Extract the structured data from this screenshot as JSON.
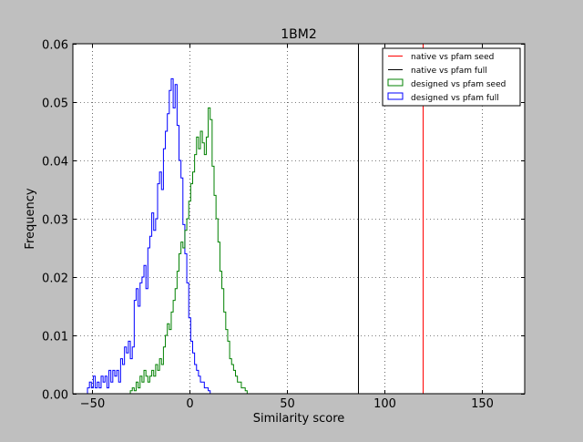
{
  "chart_data": {
    "type": "histogram",
    "title": "1BM2",
    "xlabel": "Similarity score",
    "ylabel": "Frequency",
    "xlim": [
      -60,
      172
    ],
    "ylim": [
      0,
      0.06
    ],
    "grid": true,
    "grid_style": "dotted",
    "x_ticks": [
      -50,
      0,
      50,
      100,
      150
    ],
    "x_tick_labels": [
      "−50",
      "0",
      "50",
      "100",
      "150"
    ],
    "y_ticks": [
      0,
      0.01,
      0.02,
      0.03,
      0.04,
      0.05,
      0.06
    ],
    "y_tick_labels": [
      "0.00",
      "0.01",
      "0.02",
      "0.03",
      "0.04",
      "0.05",
      "0.06"
    ],
    "legend_placement": "top-right",
    "legend": [
      {
        "label": "native vs pfam seed",
        "color": "#ff0000",
        "kind": "line"
      },
      {
        "label": "native vs pfam full",
        "color": "#000000",
        "kind": "line"
      },
      {
        "label": "designed vs pfam seed",
        "color": "#008000",
        "kind": "patch"
      },
      {
        "label": "designed vs pfam full",
        "color": "#0000ff",
        "kind": "patch"
      }
    ],
    "vlines": [
      {
        "name": "native vs pfam seed",
        "x": 119.5,
        "color": "#ff0000"
      },
      {
        "name": "native vs pfam full",
        "x": 86.5,
        "color": "#000000"
      }
    ],
    "series": [
      {
        "name": "designed vs pfam full",
        "color": "#0000ff",
        "points": [
          [
            -52,
            0.001
          ],
          [
            -51,
            0.002
          ],
          [
            -50,
            0.001
          ],
          [
            -49,
            0.003
          ],
          [
            -48,
            0.001
          ],
          [
            -47,
            0.002
          ],
          [
            -46,
            0.001
          ],
          [
            -45,
            0.003
          ],
          [
            -44,
            0.002
          ],
          [
            -43,
            0.003
          ],
          [
            -42,
            0.001
          ],
          [
            -41,
            0.004
          ],
          [
            -40,
            0.002
          ],
          [
            -39,
            0.004
          ],
          [
            -38,
            0.003
          ],
          [
            -37,
            0.004
          ],
          [
            -36,
            0.002
          ],
          [
            -35,
            0.006
          ],
          [
            -34,
            0.005
          ],
          [
            -33,
            0.008
          ],
          [
            -32,
            0.007
          ],
          [
            -31,
            0.009
          ],
          [
            -30,
            0.006
          ],
          [
            -29,
            0.008
          ],
          [
            -28,
            0.016
          ],
          [
            -27,
            0.018
          ],
          [
            -26,
            0.015
          ],
          [
            -25,
            0.019
          ],
          [
            -24,
            0.02
          ],
          [
            -23,
            0.022
          ],
          [
            -22,
            0.018
          ],
          [
            -21,
            0.025
          ],
          [
            -20,
            0.027
          ],
          [
            -19,
            0.031
          ],
          [
            -18,
            0.028
          ],
          [
            -17,
            0.03
          ],
          [
            -16,
            0.036
          ],
          [
            -15,
            0.038
          ],
          [
            -14,
            0.035
          ],
          [
            -13,
            0.042
          ],
          [
            -12,
            0.045
          ],
          [
            -11,
            0.048
          ],
          [
            -10,
            0.052
          ],
          [
            -9,
            0.054
          ],
          [
            -8,
            0.049
          ],
          [
            -7,
            0.053
          ],
          [
            -6,
            0.046
          ],
          [
            -5,
            0.04
          ],
          [
            -4,
            0.037
          ],
          [
            -3,
            0.029
          ],
          [
            -2,
            0.024
          ],
          [
            -1,
            0.019
          ],
          [
            0,
            0.013
          ],
          [
            1,
            0.009
          ],
          [
            2,
            0.007
          ],
          [
            3,
            0.005
          ],
          [
            4,
            0.004
          ],
          [
            5,
            0.003
          ],
          [
            6,
            0.002
          ],
          [
            7,
            0.002
          ],
          [
            8,
            0.001
          ],
          [
            9,
            0.001
          ],
          [
            10,
            0.0005
          ]
        ]
      },
      {
        "name": "designed vs pfam seed",
        "color": "#008000",
        "points": [
          [
            -30,
            0.0005
          ],
          [
            -29,
            0.001
          ],
          [
            -28,
            0.0005
          ],
          [
            -27,
            0.002
          ],
          [
            -26,
            0.001
          ],
          [
            -25,
            0.003
          ],
          [
            -24,
            0.002
          ],
          [
            -23,
            0.004
          ],
          [
            -22,
            0.003
          ],
          [
            -21,
            0.002
          ],
          [
            -20,
            0.003
          ],
          [
            -19,
            0.004
          ],
          [
            -18,
            0.003
          ],
          [
            -17,
            0.005
          ],
          [
            -16,
            0.004
          ],
          [
            -15,
            0.006
          ],
          [
            -14,
            0.005
          ],
          [
            -13,
            0.008
          ],
          [
            -12,
            0.01
          ],
          [
            -11,
            0.012
          ],
          [
            -10,
            0.011
          ],
          [
            -9,
            0.014
          ],
          [
            -8,
            0.016
          ],
          [
            -7,
            0.018
          ],
          [
            -6,
            0.021
          ],
          [
            -5,
            0.024
          ],
          [
            -4,
            0.026
          ],
          [
            -3,
            0.025
          ],
          [
            -2,
            0.028
          ],
          [
            -1,
            0.03
          ],
          [
            0,
            0.033
          ],
          [
            1,
            0.036
          ],
          [
            2,
            0.038
          ],
          [
            3,
            0.041
          ],
          [
            4,
            0.044
          ],
          [
            5,
            0.042
          ],
          [
            6,
            0.045
          ],
          [
            7,
            0.043
          ],
          [
            8,
            0.041
          ],
          [
            9,
            0.044
          ],
          [
            10,
            0.049
          ],
          [
            11,
            0.047
          ],
          [
            12,
            0.039
          ],
          [
            13,
            0.034
          ],
          [
            14,
            0.03
          ],
          [
            15,
            0.026
          ],
          [
            16,
            0.021
          ],
          [
            17,
            0.018
          ],
          [
            18,
            0.014
          ],
          [
            19,
            0.011
          ],
          [
            20,
            0.009
          ],
          [
            21,
            0.006
          ],
          [
            22,
            0.005
          ],
          [
            23,
            0.004
          ],
          [
            24,
            0.003
          ],
          [
            25,
            0.002
          ],
          [
            26,
            0.002
          ],
          [
            27,
            0.001
          ],
          [
            28,
            0.001
          ],
          [
            29,
            0.0005
          ]
        ]
      }
    ]
  }
}
